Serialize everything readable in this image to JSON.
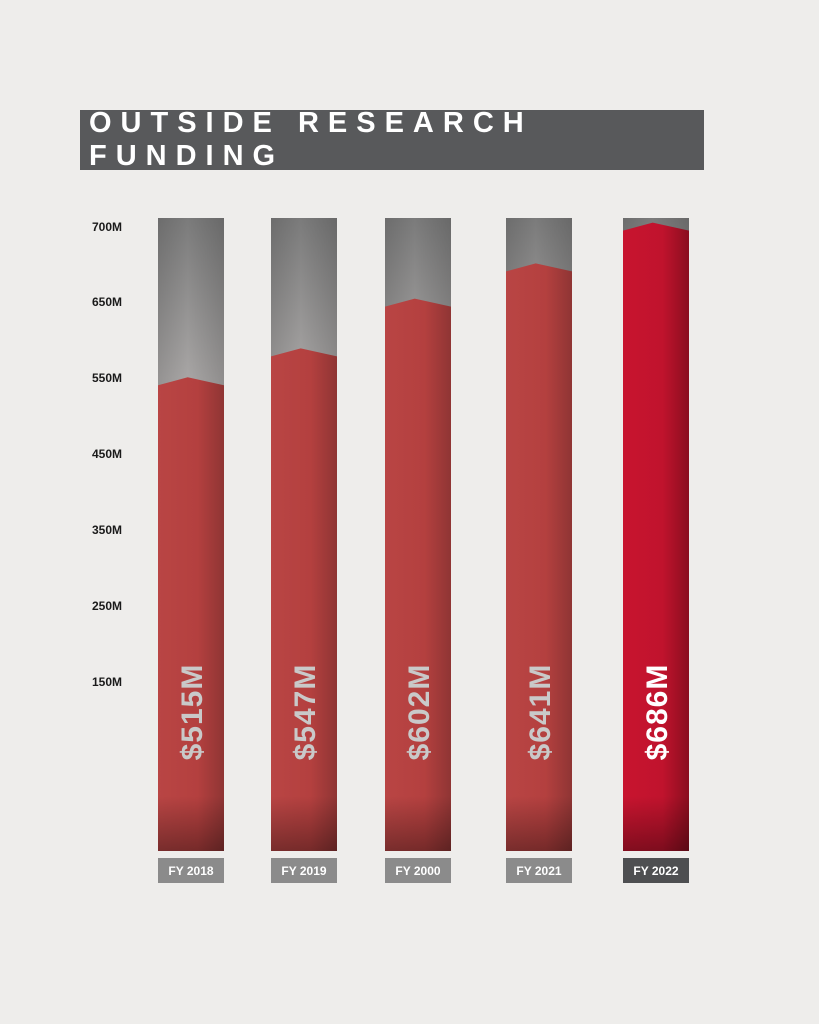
{
  "chart_data": {
    "type": "bar",
    "title": "OUTSIDE RESEARCH FUNDING",
    "categories": [
      "FY 2018",
      "FY 2019",
      "FY 2000",
      "FY 2021",
      "FY 2022"
    ],
    "values": [
      515,
      547,
      602,
      641,
      686
    ],
    "value_labels": [
      "$515M",
      "$547M",
      "$602M",
      "$641M",
      "$686M"
    ],
    "y_tick_labels": [
      "700M",
      "650M",
      "550M",
      "450M",
      "350M",
      "250M",
      "150M"
    ],
    "ylim": [
      0,
      700
    ],
    "grid": false,
    "highlight_index": 4,
    "colors": {
      "bar": "#b5403f",
      "bar_highlight": "#c0152f",
      "track": "#b7b4b3",
      "label_bg": "#8b8b8b",
      "label_bg_highlight": "#4e4f51",
      "value_text": "#c9c9c9",
      "value_text_highlight": "#ffffff"
    }
  }
}
